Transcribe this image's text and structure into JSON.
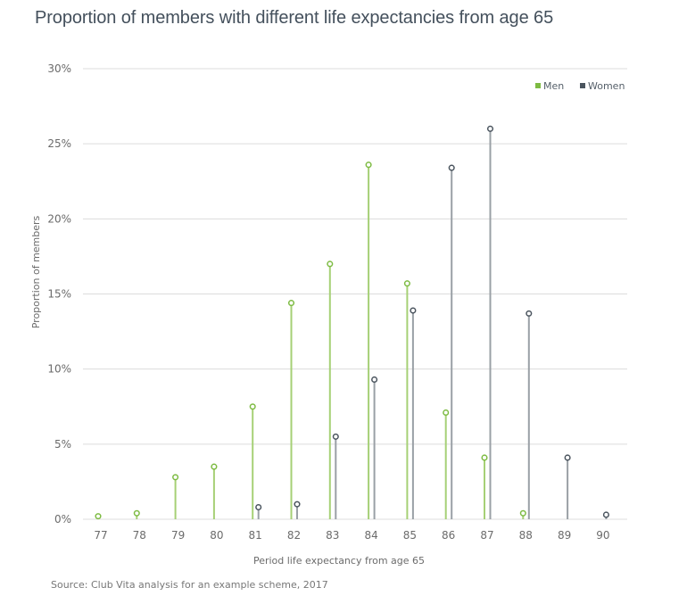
{
  "chart_data": {
    "type": "lollipop",
    "title": "Proportion of members with different life expectancies from age 65",
    "xlabel": "Period life expectancy from age 65",
    "ylabel": "Proportion of members",
    "categories": [
      "77",
      "78",
      "79",
      "80",
      "81",
      "82",
      "83",
      "84",
      "85",
      "86",
      "87",
      "88",
      "89",
      "90"
    ],
    "ylim": [
      0,
      30
    ],
    "yticks": [
      0,
      5,
      10,
      15,
      20,
      25,
      30
    ],
    "ytick_labels": [
      "0%",
      "5%",
      "10%",
      "15%",
      "20%",
      "25%",
      "30%"
    ],
    "grid": true,
    "legend_position": "top-right",
    "series": [
      {
        "name": "Men",
        "color": "#7dbb42",
        "values": [
          0.2,
          0.4,
          2.8,
          3.5,
          7.5,
          14.4,
          17.0,
          23.6,
          15.7,
          7.1,
          4.1,
          0.4,
          null,
          null
        ]
      },
      {
        "name": "Women",
        "color": "#4a545e",
        "stem_color": "#9aa0a6",
        "values": [
          null,
          null,
          null,
          null,
          0.8,
          1.0,
          5.5,
          9.3,
          13.9,
          23.4,
          26.0,
          13.7,
          4.1,
          0.3
        ]
      }
    ],
    "source": "Source:  Club Vita analysis for an example scheme, 2017"
  }
}
